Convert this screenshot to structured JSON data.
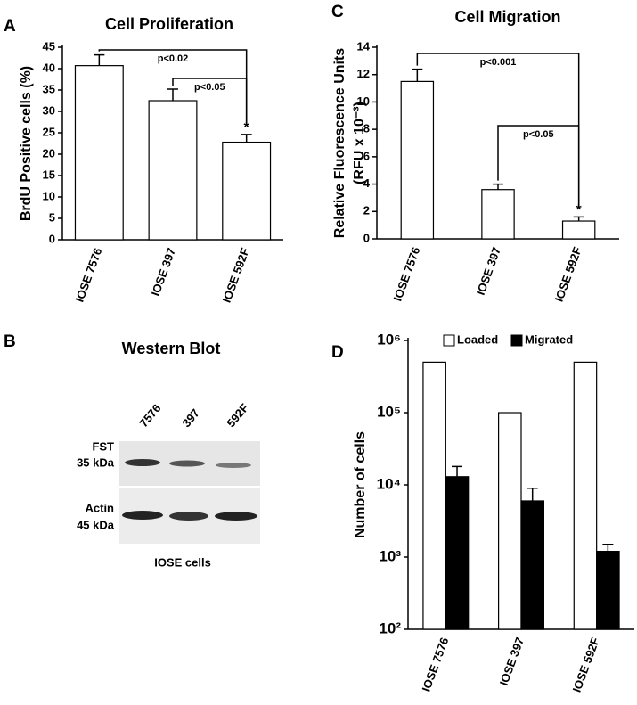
{
  "chart_data": [
    {
      "type": "bar",
      "panel": "A",
      "title": "Cell Proliferation",
      "y_label": "BrdU Positive cells (%)",
      "categories": [
        "IOSE 7576",
        "IOSE 397",
        "IOSE 592F"
      ],
      "values": [
        40.7,
        32.5,
        22.8
      ],
      "errors": [
        2.5,
        2.7,
        1.8
      ],
      "color": "#ffffff",
      "ylim": [
        0,
        45
      ],
      "yticks": [
        0,
        5,
        10,
        15,
        20,
        25,
        30,
        35,
        40,
        45
      ],
      "annotations": [
        "p<0.02",
        "p<0.05",
        "*"
      ]
    },
    {
      "type": "bar",
      "panel": "C",
      "title": "Cell Migration",
      "y_label": [
        "Relative Fluorescence Units",
        "(RFU x 10⁻³)"
      ],
      "categories": [
        "IOSE 7576",
        "IOSE 397",
        "IOSE 592F"
      ],
      "values": [
        11.5,
        3.6,
        1.3
      ],
      "errors": [
        0.9,
        0.4,
        0.3
      ],
      "color": "#ffffff",
      "ylim": [
        0,
        14
      ],
      "yticks": [
        0,
        2,
        4,
        6,
        8,
        10,
        12,
        14
      ],
      "annotations": [
        "p<0.001",
        "p<0.05",
        "*"
      ]
    },
    {
      "type": "bar",
      "panel": "D",
      "y_label": "Number of cells",
      "log_scale": true,
      "legend": "top",
      "categories": [
        "IOSE 7576",
        "IOSE 397",
        "IOSE 592F"
      ],
      "series": [
        {
          "name": "Loaded",
          "color": "#ffffff",
          "values": [
            500000,
            100000,
            500000
          ]
        },
        {
          "name": "Migrated",
          "color": "#000000",
          "values": [
            13000,
            6000,
            1200
          ],
          "errors": [
            5000,
            3000,
            300
          ]
        }
      ],
      "ylim": [
        100,
        1000000
      ],
      "yticks": [
        {
          "value": 100,
          "label": "10²"
        },
        {
          "value": 1000,
          "label": "10³"
        },
        {
          "value": 10000,
          "label": "10⁴"
        },
        {
          "value": 100000,
          "label": "10⁵"
        },
        {
          "value": 1000000,
          "label": "10⁶"
        }
      ]
    }
  ],
  "western_blot": {
    "panel": "B",
    "title": "Western Blot",
    "lanes": [
      "7576",
      "397",
      "592F"
    ],
    "rows": [
      [
        "FST",
        "35 kDa"
      ],
      [
        "Actin",
        "45 kDa"
      ]
    ],
    "x_label": "IOSE cells"
  }
}
